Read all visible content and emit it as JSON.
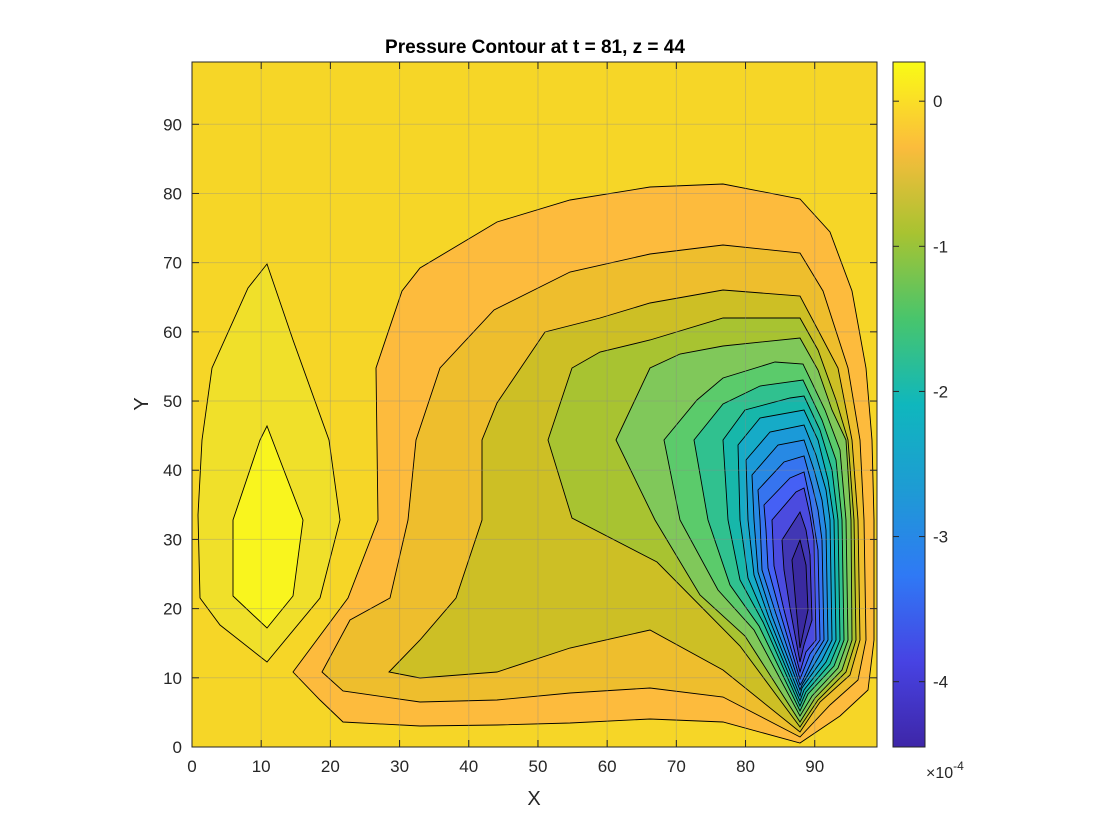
{
  "chart_data": {
    "type": "contour",
    "title": "Pressure Contour at t = 81, z = 44",
    "xlabel": "X",
    "ylabel": "Y",
    "xlim": [
      0,
      99
    ],
    "ylim": [
      0,
      99
    ],
    "xticks": [
      0,
      10,
      20,
      30,
      40,
      50,
      60,
      70,
      80,
      90
    ],
    "yticks": [
      0,
      10,
      20,
      30,
      40,
      50,
      60,
      70,
      80,
      90
    ],
    "grid": true,
    "colormap": "parula",
    "colorbar": {
      "range": [
        -4.45,
        0.27
      ],
      "ticks": [
        0,
        -1,
        -2,
        -3,
        -4
      ],
      "tick_labels": [
        "0",
        "-1",
        "-2",
        "-3",
        "-4"
      ],
      "exponent_label": "×10",
      "exponent_value": "-4"
    },
    "contour_levels": [
      {
        "level": -0.16,
        "color": "#f6d627"
      },
      {
        "level": 0.0,
        "color": "#f0e02a"
      },
      {
        "level": 0.15,
        "color": "#f9f51e"
      },
      {
        "level": -0.35,
        "color": "#fdbb3d"
      },
      {
        "level": -0.7,
        "color": "#eebe2d"
      },
      {
        "level": -0.95,
        "color": "#cdbf25"
      },
      {
        "level": -1.2,
        "color": "#a8c331"
      },
      {
        "level": -1.45,
        "color": "#80c85a"
      },
      {
        "level": -1.7,
        "color": "#5bcb6b"
      },
      {
        "level": -1.95,
        "color": "#30c18f"
      },
      {
        "level": -2.2,
        "color": "#17b7aa"
      },
      {
        "level": -2.45,
        "color": "#16abc7"
      },
      {
        "level": -2.75,
        "color": "#1b9ad8"
      },
      {
        "level": -3.0,
        "color": "#2789e4"
      },
      {
        "level": -3.3,
        "color": "#3674ef"
      },
      {
        "level": -3.6,
        "color": "#4560f5"
      },
      {
        "level": -3.9,
        "color": "#4b4bdf"
      },
      {
        "level": -4.2,
        "color": "#4137b4"
      }
    ],
    "extrema": [
      {
        "kind": "max",
        "x": 11,
        "y": 30,
        "value": 0.2
      },
      {
        "kind": "min",
        "x": 88,
        "y": 22,
        "value": -4.4
      }
    ]
  }
}
